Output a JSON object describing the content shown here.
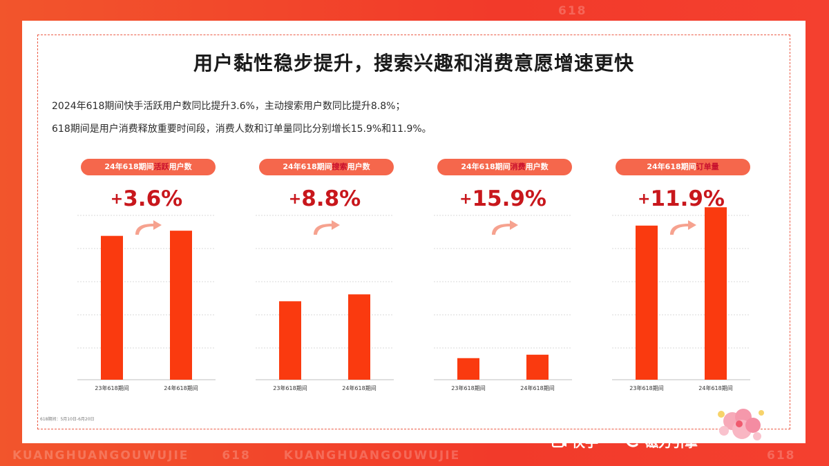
{
  "watermark": {
    "top": "618",
    "bottom": [
      "KUANGHUANGOUWUJIE",
      "618",
      "KUANGHUANGOUWUJIE"
    ],
    "right": "618"
  },
  "title": "用户黏性稳步提升，搜索兴趣和消费意愿增速更快",
  "description": [
    "2024年618期间快手活跃用户数同比提升3.6%，主动搜索用户数同比提升8.8%；",
    "618期间是用户消费释放重要时间段，消费人数和订单量同比分别增长15.9%和11.9%。"
  ],
  "panels": [
    {
      "pill_prefix": "24年618期间",
      "pill_highlight": "活跃",
      "pill_suffix": "用户数",
      "plus": "+",
      "pct": "3.6%"
    },
    {
      "pill_prefix": "24年618期间",
      "pill_highlight": "搜索",
      "pill_suffix": "用户数",
      "plus": "+",
      "pct": "8.8%"
    },
    {
      "pill_prefix": "24年618期间",
      "pill_highlight": "消费",
      "pill_suffix": "用户数",
      "plus": "+",
      "pct": "15.9%"
    },
    {
      "pill_prefix": "24年618期间",
      "pill_highlight": "订单量",
      "pill_suffix": "",
      "plus": "+",
      "pct": "11.9%"
    }
  ],
  "chart_data": [
    {
      "type": "bar",
      "categories": [
        "23年618期间",
        "24年618期间"
      ],
      "values": [
        100,
        103.6
      ],
      "ylim": [
        0,
        120
      ]
    },
    {
      "type": "bar",
      "categories": [
        "23年618期间",
        "24年618期间"
      ],
      "values": [
        100,
        108.8
      ],
      "ylim": [
        0,
        220
      ]
    },
    {
      "type": "bar",
      "categories": [
        "23年618期间",
        "24年618期间"
      ],
      "values": [
        100,
        115.9
      ],
      "ylim": [
        0,
        800
      ]
    },
    {
      "type": "bar",
      "categories": [
        "23年618期间",
        "24年618期间"
      ],
      "values": [
        100,
        111.9
      ],
      "ylim": [
        0,
        112
      ]
    }
  ],
  "colors": {
    "bar": "#fa3a0f",
    "accent": "#c8171c",
    "pill": "#f5674c"
  },
  "footnote": "618期间：5月10日-6月20日",
  "logo": {
    "brand1": "快手",
    "separator": "·",
    "brand2": "磁力引擎"
  }
}
